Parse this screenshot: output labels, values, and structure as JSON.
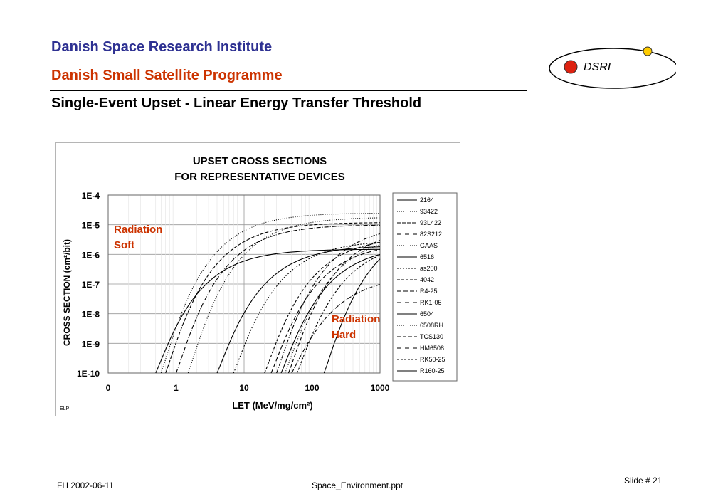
{
  "header": {
    "institute": "Danish Space Research Institute",
    "programme": "Danish Small Satellite Programme",
    "slide_title": "Single-Event Upset - Linear Energy Transfer Threshold"
  },
  "logo": {
    "text": "DSRI",
    "accent_red": "#dd2211",
    "accent_yellow": "#ffcc00"
  },
  "colors": {
    "institute": "#2e3192",
    "programme": "#cc3300",
    "annotation": "#cc3300"
  },
  "annotations": {
    "soft": [
      "Radiation",
      "Soft"
    ],
    "hard": [
      "Radiation",
      "Hard"
    ]
  },
  "figure_tag": "ELP",
  "footer": {
    "left": "FH  2002-06-11",
    "center": "Space_Environment.ppt",
    "right": "Slide # 21"
  },
  "chart_data": {
    "type": "line",
    "title": [
      "UPSET CROSS SECTIONS",
      "FOR REPRESENTATIVE DEVICES"
    ],
    "xlabel": "LET (MeV/mg/cm²)",
    "ylabel": "CROSS SECTION (cm²/bit)",
    "x_scale": "log",
    "y_scale": "log",
    "x_ticks": [
      0.1,
      1,
      10,
      100,
      1000
    ],
    "x_tick_labels": [
      "0",
      "1",
      "10",
      "100",
      "1000"
    ],
    "y_ticks": [
      0.0001,
      1e-05,
      1e-06,
      1e-07,
      1e-08,
      1e-09,
      1e-10
    ],
    "y_tick_labels": [
      "1E-4",
      "1E-5",
      "1E-6",
      "1E-7",
      "1E-8",
      "1E-9",
      "1E-10"
    ],
    "xlim": [
      0.1,
      1000
    ],
    "ylim": [
      1e-10,
      0.0001
    ],
    "grid": true,
    "legend": "right",
    "series": [
      {
        "name": "2164",
        "dash": "",
        "threshold": 0.5,
        "saturation": 1.5e-06
      },
      {
        "name": "93422",
        "dash": "1,2",
        "threshold": 0.6,
        "saturation": 2.5e-05
      },
      {
        "name": "93L422",
        "dash": "5,2",
        "threshold": 0.7,
        "saturation": 1.2e-05
      },
      {
        "name": "82S212",
        "dash": "6,2,1,2",
        "threshold": 1.0,
        "saturation": 1e-05
      },
      {
        "name": "GAAS",
        "dash": "1,2",
        "threshold": 1.5,
        "saturation": 1.8e-05
      },
      {
        "name": "6516",
        "dash": "",
        "threshold": 4.0,
        "saturation": 2e-06
      },
      {
        "name": "as200",
        "dash": "2,2",
        "threshold": 7.0,
        "saturation": 3e-06
      },
      {
        "name": "4042",
        "dash": "4,2",
        "threshold": 20,
        "saturation": 4e-06
      },
      {
        "name": "R4-25",
        "dash": "6,3",
        "threshold": 25,
        "saturation": 2.5e-06
      },
      {
        "name": "RK1-05",
        "dash": "6,2,1,2",
        "threshold": 30,
        "saturation": 1e-05
      },
      {
        "name": "6504",
        "dash": "",
        "threshold": 35,
        "saturation": 2e-06
      },
      {
        "name": "6508RH",
        "dash": "1,2",
        "threshold": 40,
        "saturation": 5e-06
      },
      {
        "name": "TCS130",
        "dash": "5,3",
        "threshold": 45,
        "saturation": 8e-06
      },
      {
        "name": "HM6508",
        "dash": "6,2,1,2",
        "threshold": 50,
        "saturation": 2e-07
      },
      {
        "name": "RK50-25",
        "dash": "3,2",
        "threshold": 60,
        "saturation": 3e-06
      },
      {
        "name": "R160-25",
        "dash": "",
        "threshold": 150,
        "saturation": 1.2e-05
      }
    ]
  }
}
